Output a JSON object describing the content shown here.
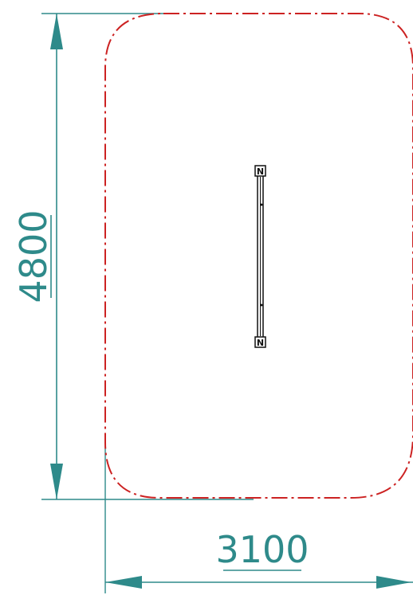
{
  "drawing": {
    "dimension_height": "4800",
    "dimension_width": "3100",
    "marker_top": "N",
    "marker_bottom": "N"
  },
  "colors": {
    "dimension": "#1f8080",
    "boundary": "#cc1f1f",
    "part": "#111111",
    "background": "#ffffff"
  },
  "icons": {
    "arrow": "triangle-arrowhead",
    "marker": "square-n-marker"
  }
}
